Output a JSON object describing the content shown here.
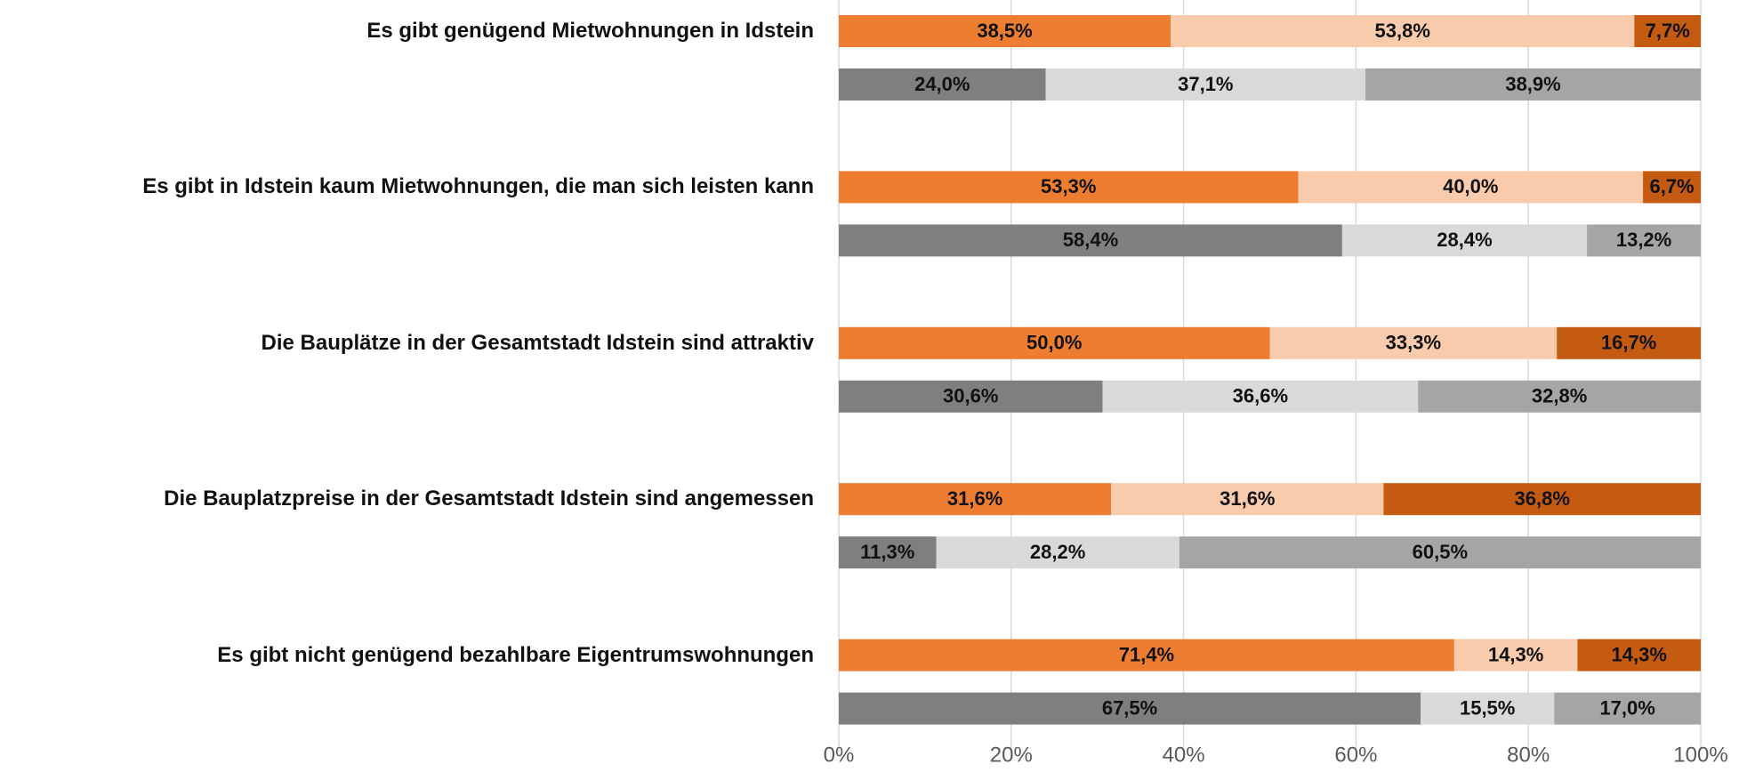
{
  "chart_data": {
    "type": "stacked_barh",
    "categories": [
      "Es gibt genügend Mietwohnungen in Idstein",
      "Es gibt in Idstein kaum Mietwohnungen, die man sich leisten kann",
      "Die Bauplätze in der Gesamtstadt Idstein sind attraktiv",
      "Die Bauplatzpreise in der Gesamtstadt Idstein sind angemessen",
      "Es gibt nicht genügend bezahlbare Eigentrumswohnungen"
    ],
    "groups": [
      {
        "series": [
          {
            "color": "#ED7D31",
            "values": [
              38.5,
              53.3,
              50.0,
              31.6,
              71.4
            ],
            "value_labels": [
              "38,5%",
              "53,3%",
              "50,0%",
              "31,6%",
              "71,4%"
            ]
          },
          {
            "color": "#F8CBAD",
            "values": [
              53.8,
              40.0,
              33.3,
              31.6,
              14.3
            ],
            "value_labels": [
              "53,8%",
              "40,0%",
              "33,3%",
              "31,6%",
              "14,3%"
            ]
          },
          {
            "color": "#C55A11",
            "values": [
              7.7,
              6.7,
              16.7,
              36.8,
              14.3
            ],
            "value_labels": [
              "7,7%",
              "6,7%",
              "16,7%",
              "36,8%",
              "14,3%"
            ]
          }
        ]
      },
      {
        "series": [
          {
            "color": "#7F7F7F",
            "values": [
              24.0,
              58.4,
              30.6,
              11.3,
              67.5
            ],
            "value_labels": [
              "24,0%",
              "58,4%",
              "30,6%",
              "11,3%",
              "67,5%"
            ]
          },
          {
            "color": "#D9D9D9",
            "values": [
              37.1,
              28.4,
              36.6,
              28.2,
              15.5
            ],
            "value_labels": [
              "37,1%",
              "28,4%",
              "36,6%",
              "28,2%",
              "15,5%"
            ]
          },
          {
            "color": "#A5A5A5",
            "values": [
              38.9,
              13.2,
              32.8,
              60.5,
              17.0
            ],
            "value_labels": [
              "38,9%",
              "13,2%",
              "32,8%",
              "60,5%",
              "17,0%"
            ]
          }
        ]
      }
    ],
    "xlim": [
      0,
      100
    ],
    "xticks": [
      {
        "value": 0,
        "label": "0%"
      },
      {
        "value": 20,
        "label": "20%"
      },
      {
        "value": 40,
        "label": "40%"
      },
      {
        "value": 60,
        "label": "60%"
      },
      {
        "value": 80,
        "label": "80%"
      },
      {
        "value": 100,
        "label": "100%"
      }
    ],
    "grid": true
  }
}
